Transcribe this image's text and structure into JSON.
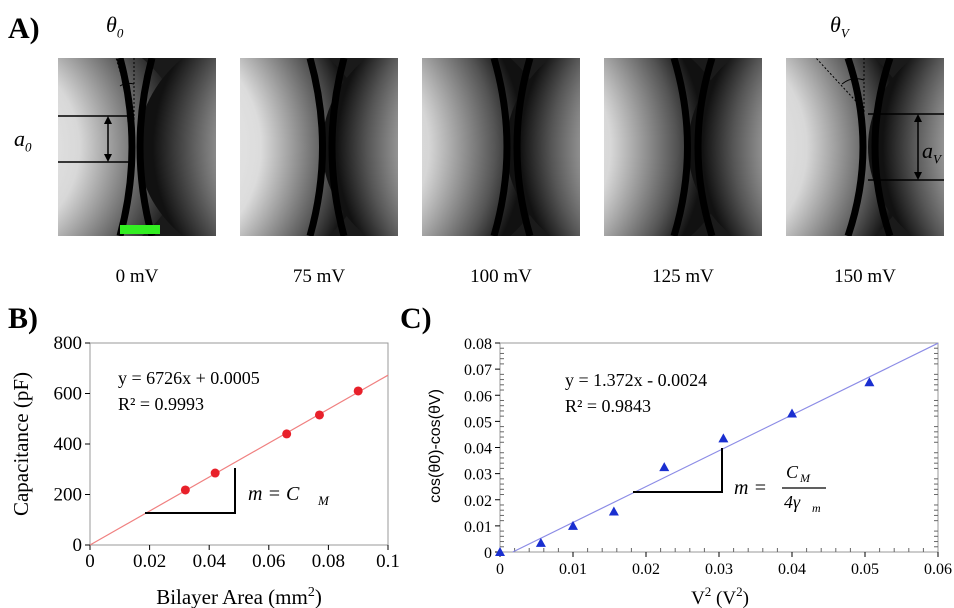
{
  "panels": {
    "a_label": "A)",
    "b_label": "B)",
    "c_label": "C)"
  },
  "micrographs": {
    "voltages": [
      "0 mV",
      "75 mV",
      "100 mV",
      "125 mV",
      "150 mV"
    ],
    "theta0": "θ",
    "theta0_sub": "0",
    "thetaV": "θ",
    "thetaV_sub": "V",
    "a0": "a",
    "a0_sub": "0",
    "aV": "a",
    "aV_sub": "V",
    "scale_bar_color": "#33ee22"
  },
  "chart_data": [
    {
      "type": "scatter",
      "xlabel": "Bilayer Area (mm",
      "xlabel_sup": "2",
      "xlabel_end": ")",
      "ylabel": "Capacitance (pF)",
      "xlim": [
        0,
        0.1
      ],
      "ylim": [
        0,
        800
      ],
      "x_ticks": [
        "0",
        "0.02",
        "0.04",
        "0.06",
        "0.08",
        "0.1"
      ],
      "y_ticks": [
        "0",
        "200",
        "400",
        "600",
        "800"
      ],
      "marker_color": "#e8202a",
      "fit_color": "#f08080",
      "points": [
        {
          "x": 0.032,
          "y": 218
        },
        {
          "x": 0.042,
          "y": 285
        },
        {
          "x": 0.066,
          "y": 440
        },
        {
          "x": 0.077,
          "y": 515
        },
        {
          "x": 0.09,
          "y": 610
        }
      ],
      "fit": {
        "slope": 6726,
        "intercept": 0.0005
      },
      "equation": "y = 6726x + 0.0005",
      "r2": "R² = 0.9993",
      "slope_label": "m = C",
      "slope_label_sub": "M"
    },
    {
      "type": "scatter",
      "xlabel": "V",
      "xlabel_sup": "2",
      "xlabel_mid": " (V",
      "xlabel_sup2": "2",
      "xlabel_end": ")",
      "ylabel": "cos(θ0)-cos(θV)",
      "xlim": [
        0,
        0.06
      ],
      "ylim": [
        0,
        0.08
      ],
      "x_ticks": [
        "0",
        "0.01",
        "0.02",
        "0.03",
        "0.04",
        "0.05",
        "0.06"
      ],
      "y_ticks": [
        "0",
        "0.01",
        "0.02",
        "0.03",
        "0.04",
        "0.05",
        "0.06",
        "0.07",
        "0.08"
      ],
      "marker_color": "#1a2fd0",
      "fit_color": "#8c8ce6",
      "points": [
        {
          "x": 0.0,
          "y": 0.0
        },
        {
          "x": 0.0056,
          "y": 0.0035
        },
        {
          "x": 0.01,
          "y": 0.01
        },
        {
          "x": 0.0156,
          "y": 0.0155
        },
        {
          "x": 0.0225,
          "y": 0.0325
        },
        {
          "x": 0.0306,
          "y": 0.0435
        },
        {
          "x": 0.04,
          "y": 0.053
        },
        {
          "x": 0.0506,
          "y": 0.065
        }
      ],
      "fit": {
        "slope": 1.372,
        "intercept": -0.0024
      },
      "equation": "y = 1.372x - 0.0024",
      "r2": "R² = 0.9843",
      "slope_label": "m =",
      "slope_num": "C",
      "slope_num_sub": "M",
      "slope_den": "4γ",
      "slope_den_sub": "m"
    }
  ]
}
